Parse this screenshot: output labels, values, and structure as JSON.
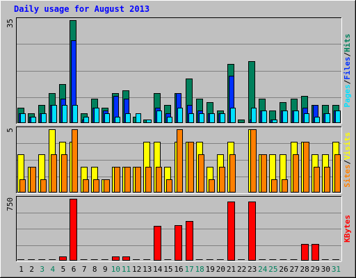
{
  "chart_data": {
    "type": "bar",
    "title": "Daily usage for August 2013",
    "categories": [
      "1",
      "2",
      "3",
      "4",
      "5",
      "6",
      "7",
      "8",
      "9",
      "10",
      "11",
      "12",
      "13",
      "14",
      "15",
      "16",
      "17",
      "18",
      "19",
      "20",
      "21",
      "22",
      "23",
      "24",
      "25",
      "26",
      "27",
      "28",
      "29",
      "30",
      "31"
    ],
    "weekend_days": [
      "3",
      "4",
      "10",
      "11",
      "17",
      "18",
      "24",
      "25",
      "31"
    ],
    "panels": [
      {
        "name": "hits-files-pages",
        "ylim": [
          0,
          35
        ],
        "scale_max_label": "35",
        "right_label": [
          "Pages",
          "Files",
          "Hits"
        ],
        "series": [
          {
            "name": "Hits",
            "color": "#00805c",
            "values": [
              5,
              3,
              6,
              10,
              13,
              35,
              3,
              8,
              5,
              10,
              11,
              2,
              1,
              10,
              6,
              10,
              15,
              8,
              7,
              4,
              20,
              1,
              21,
              8,
              4,
              7,
              8,
              9,
              6,
              6,
              6
            ]
          },
          {
            "name": "Files",
            "color": "#0031ff",
            "values": [
              3,
              2,
              3,
              6,
              8,
              28,
              1,
              5,
              4,
              9,
              8,
              0,
              0,
              5,
              3,
              10,
              6,
              4,
              3,
              3,
              16,
              0,
              1,
              4,
              1,
              4,
              4,
              5,
              6,
              3,
              4
            ]
          },
          {
            "name": "Pages",
            "color": "#00e0ff",
            "values": [
              3,
              2,
              3,
              6,
              6,
              6,
              2,
              5,
              3,
              2,
              3,
              3,
              1,
              4,
              2,
              5,
              3,
              3,
              3,
              3,
              5,
              0,
              5,
              4,
              1,
              4,
              4,
              3,
              2,
              3,
              4
            ]
          }
        ]
      },
      {
        "name": "visits-sites",
        "ylim": [
          0,
          5
        ],
        "scale_max_label": "5",
        "right_label": [
          "Sites",
          "Visits"
        ],
        "series": [
          {
            "name": "Visits",
            "color": "#ffff00",
            "values": [
              3,
              2,
              3,
              5,
              4,
              4,
              2,
              2,
              1,
              2,
              2,
              2,
              4,
              4,
              2,
              4,
              4,
              4,
              2,
              3,
              4,
              0,
              5,
              3,
              3,
              3,
              4,
              4,
              3,
              3,
              4
            ]
          },
          {
            "name": "Sites",
            "color": "#ff8000",
            "values": [
              1,
              2,
              1,
              3,
              3,
              5,
              1,
              1,
              1,
              2,
              2,
              2,
              2,
              2,
              1,
              5,
              4,
              3,
              1,
              2,
              3,
              0,
              5,
              3,
              1,
              1,
              3,
              4,
              2,
              2,
              3
            ]
          }
        ]
      },
      {
        "name": "kbytes",
        "ylim": [
          0,
          750
        ],
        "scale_max_label": "750",
        "right_label": [
          "KBytes"
        ],
        "series": [
          {
            "name": "KBytes",
            "color": "#ff0000",
            "values": [
              0,
              0,
              0,
              0,
              45,
              750,
              0,
              0,
              0,
              40,
              40,
              0,
              0,
              420,
              0,
              430,
              480,
              0,
              0,
              0,
              715,
              0,
              715,
              0,
              0,
              0,
              0,
              195,
              195,
              0,
              0
            ]
          }
        ]
      }
    ],
    "colors": {
      "background": "#c0c0c0",
      "title": "#0000ff",
      "weekday_label": "#000000",
      "weekend_label": "#00805c",
      "grid": "#808080",
      "baseline_empty": "#000000"
    }
  }
}
